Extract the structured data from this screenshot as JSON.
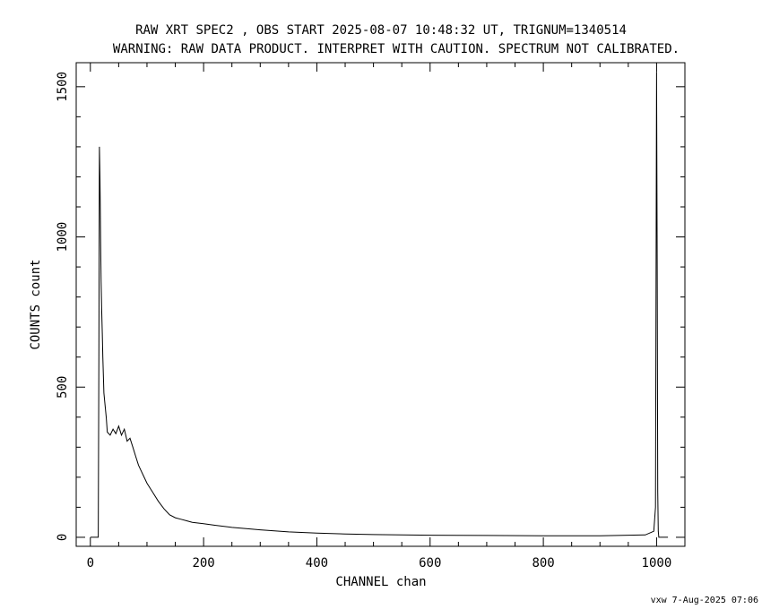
{
  "chart_data": {
    "type": "line",
    "title": "RAW XRT SPEC2 , OBS START 2025-08-07 10:48:32 UT, TRIGNUM=1340514",
    "subtitle": "WARNING: RAW DATA PRODUCT. INTERPRET WITH CAUTION. SPECTRUM NOT CALIBRATED.",
    "xlabel": "CHANNEL  chan",
    "ylabel": "COUNTS  count",
    "xlim": [
      -25,
      1050
    ],
    "ylim": [
      -30,
      1580
    ],
    "x_ticks": [
      0,
      200,
      400,
      600,
      800,
      1000
    ],
    "x_tick_labels": [
      "0",
      "200",
      "400",
      "600",
      "800",
      "1000"
    ],
    "y_ticks": [
      0,
      500,
      1000,
      1500
    ],
    "y_tick_labels": [
      "0",
      "500",
      "1000",
      "1500"
    ],
    "grid": false,
    "footer": "vxw  7-Aug-2025 07:06",
    "series": [
      {
        "x": [
          0,
          10,
          14,
          15,
          16,
          17,
          18,
          19,
          20,
          21,
          22,
          24,
          26,
          28,
          30,
          35,
          40,
          45,
          50,
          55,
          60,
          65,
          70,
          75,
          80,
          85,
          90,
          95,
          100,
          110,
          120,
          130,
          140,
          150,
          160,
          170,
          180,
          200,
          220,
          250,
          280,
          300,
          350,
          400,
          450,
          500,
          600,
          700,
          800,
          900,
          980,
          995,
          998,
          1000,
          1001,
          1002,
          1003,
          1004,
          1005,
          1010,
          1020
        ],
        "y": [
          0,
          0,
          0,
          600,
          1300,
          1200,
          1000,
          850,
          760,
          680,
          600,
          480,
          440,
          400,
          350,
          340,
          360,
          345,
          370,
          340,
          360,
          320,
          330,
          300,
          270,
          240,
          220,
          200,
          180,
          150,
          120,
          95,
          75,
          65,
          60,
          55,
          50,
          45,
          40,
          33,
          28,
          25,
          18,
          14,
          11,
          9,
          7,
          6,
          5,
          5,
          8,
          20,
          100,
          1550,
          900,
          150,
          20,
          0,
          0,
          0,
          0
        ]
      }
    ]
  }
}
